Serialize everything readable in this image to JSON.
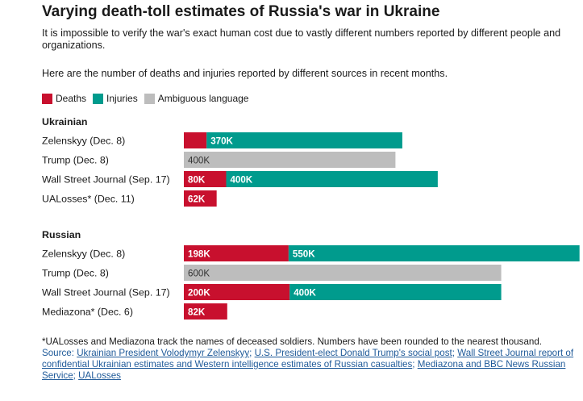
{
  "title": "Varying death-toll estimates of Russia's war in Ukraine",
  "subtitle": "It is impossible to verify the war's exact human cost due to vastly different numbers reported by different people and organizations.",
  "intro": "Here are the number of deaths and injuries reported by different sources in recent months.",
  "colors": {
    "deaths": "#c8102e",
    "injuries": "#009b8d",
    "ambiguous": "#bdbdbd"
  },
  "chart_data": {
    "type": "bar",
    "orientation": "horizontal",
    "stacked": true,
    "xlim": [
      0,
      750000
    ],
    "grid": false,
    "legend": [
      {
        "name": "Deaths",
        "color": "#c8102e"
      },
      {
        "name": "Injuries",
        "color": "#009b8d"
      },
      {
        "name": "Ambiguous language",
        "color": "#bdbdbd"
      }
    ],
    "groups": [
      {
        "name": "Ukrainian",
        "rows": [
          {
            "label": "Zelenskyy (Dec. 8)",
            "segments": [
              {
                "series": "Deaths",
                "value": 43000,
                "label": ""
              },
              {
                "series": "Injuries",
                "value": 370000,
                "label": "370K"
              }
            ]
          },
          {
            "label": "Trump (Dec. 8)",
            "segments": [
              {
                "series": "Ambiguous language",
                "value": 400000,
                "label": "400K"
              }
            ]
          },
          {
            "label": "Wall Street Journal (Sep. 17)",
            "segments": [
              {
                "series": "Deaths",
                "value": 80000,
                "label": "80K"
              },
              {
                "series": "Injuries",
                "value": 400000,
                "label": "400K"
              }
            ]
          },
          {
            "label": "UALosses* (Dec. 11)",
            "segments": [
              {
                "series": "Deaths",
                "value": 62000,
                "label": "62K"
              }
            ]
          }
        ]
      },
      {
        "name": "Russian",
        "rows": [
          {
            "label": "Zelenskyy (Dec. 8)",
            "segments": [
              {
                "series": "Deaths",
                "value": 198000,
                "label": "198K"
              },
              {
                "series": "Injuries",
                "value": 550000,
                "label": "550K"
              }
            ]
          },
          {
            "label": "Trump (Dec. 8)",
            "segments": [
              {
                "series": "Ambiguous language",
                "value": 600000,
                "label": "600K"
              }
            ]
          },
          {
            "label": "Wall Street Journal (Sep. 17)",
            "segments": [
              {
                "series": "Deaths",
                "value": 200000,
                "label": "200K"
              },
              {
                "series": "Injuries",
                "value": 400000,
                "label": "400K"
              }
            ]
          },
          {
            "label": "Mediazona* (Dec. 6)",
            "segments": [
              {
                "series": "Deaths",
                "value": 82000,
                "label": "82K"
              }
            ]
          }
        ]
      }
    ]
  },
  "notes": {
    "footnote": "*UALosses and Mediazona track the names of deceased soldiers. Numbers have been rounded to the nearest thousand.",
    "source_prefix": "Source: ",
    "sources": [
      "Ukrainian President Volodymyr Zelenskyy",
      "U.S. President-elect Donald Trump's social post",
      "Wall Street Journal report of confidential Ukrainian estimates and Western intelligence estimates of Russian casualties",
      "Mediazona and BBC News Russian Service",
      "UALosses"
    ],
    "separator": "; "
  }
}
